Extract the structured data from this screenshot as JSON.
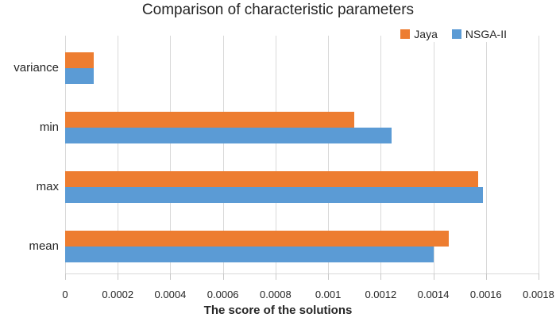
{
  "chart_data": {
    "type": "bar",
    "orientation": "horizontal",
    "title": "Comparison of characteristic parameters",
    "xlabel": "The score of the solutions",
    "categories": [
      "variance",
      "min",
      "max",
      "mean"
    ],
    "series": [
      {
        "name": "Jaya",
        "color": "#ED7D31",
        "values": [
          0.00011,
          0.0011,
          0.00157,
          0.00146
        ]
      },
      {
        "name": "NSGA-II",
        "color": "#5B9BD5",
        "values": [
          0.00011,
          0.00124,
          0.00159,
          0.0014
        ]
      }
    ],
    "xlim": [
      0,
      0.0018
    ],
    "xticks": [
      0,
      0.0002,
      0.0004,
      0.0006,
      0.0008,
      0.001,
      0.0012,
      0.0014,
      0.0016,
      0.0018
    ],
    "xtick_labels": [
      "0",
      "0.0002",
      "0.0004",
      "0.0006",
      "0.0008",
      "0.001",
      "0.0012",
      "0.0014",
      "0.0016",
      "0.0018"
    ],
    "grid": true,
    "gridline_color": "#d9d9d9",
    "legend_position": "top-right"
  }
}
